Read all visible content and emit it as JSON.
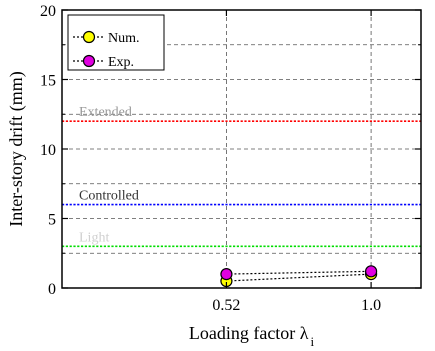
{
  "chart_data": {
    "type": "line",
    "xlabel": "Loading factor λ",
    "xlabel_subscript": "i",
    "ylabel": "Inter-story drift (mm)",
    "categories": [
      "0.52",
      "1.0"
    ],
    "ylim": [
      0,
      20
    ],
    "yticks": [
      "0",
      "5",
      "10",
      "15",
      "20"
    ],
    "grid": true,
    "legend_position": "top-left",
    "series": [
      {
        "name": "Num.",
        "values": [
          0.5,
          1.0
        ],
        "color": "#ffff00",
        "marker": "circle",
        "line_style": "dotted"
      },
      {
        "name": "Exp.",
        "values": [
          1.0,
          1.2
        ],
        "color": "#e000e0",
        "marker": "circle",
        "line_style": "dotted"
      }
    ],
    "reference_lines": [
      {
        "label": "Extended",
        "value": 12,
        "color": "#ff0000",
        "label_color": "#999999"
      },
      {
        "label": "Controlled",
        "value": 6,
        "color": "#0000ff",
        "label_color": "#333333"
      },
      {
        "label": "Light",
        "value": 3,
        "color": "#00dd00",
        "label_color": "#d0d0d0"
      }
    ]
  }
}
